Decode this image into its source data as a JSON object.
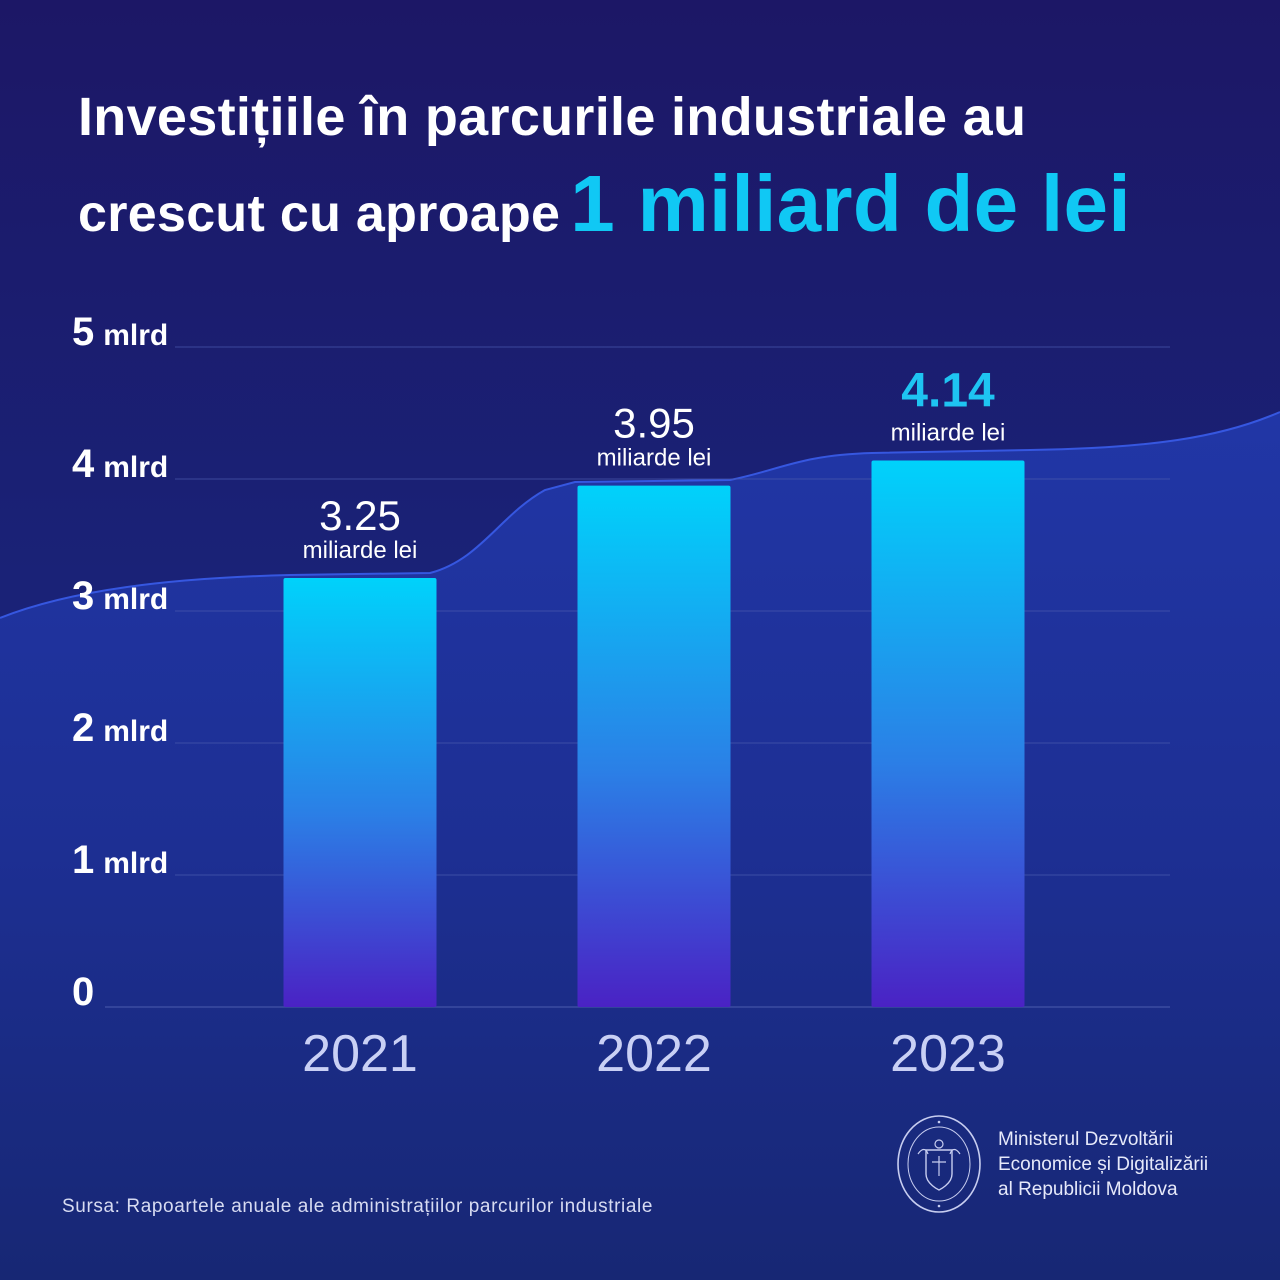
{
  "title": {
    "line1": "Investițiile în parcurile industriale au",
    "line2_plain": "crescut cu aproape",
    "line2_accent": "1 miliard de lei"
  },
  "chart_data": {
    "type": "bar",
    "categories": [
      "2021",
      "2022",
      "2023"
    ],
    "values": [
      3.25,
      3.95,
      4.14
    ],
    "value_labels": [
      "3.25",
      "3.95",
      "4.14"
    ],
    "value_unit": "miliarde lei",
    "ylim": [
      0,
      5
    ],
    "y_ticks": [
      {
        "value": 0,
        "num": "0",
        "unit": ""
      },
      {
        "value": 1,
        "num": "1",
        "unit": "mlrd"
      },
      {
        "value": 2,
        "num": "2",
        "unit": "mlrd"
      },
      {
        "value": 3,
        "num": "3",
        "unit": "mlrd"
      },
      {
        "value": 4,
        "num": "4",
        "unit": "mlrd"
      },
      {
        "value": 5,
        "num": "5",
        "unit": "mlrd"
      }
    ],
    "grid": true,
    "highlight_index": 2,
    "colors": {
      "bar_top": "#00d2fb",
      "bar_bottom": "#4a22c4",
      "highlight_text": "#1ec4f2"
    }
  },
  "footer": {
    "source": "Sursa: Rapoartele anuale ale administrațiilor parcurilor industriale",
    "ministry": [
      "Ministerul Dezvoltării",
      "Economice și Digitalizării",
      "al Republicii Moldova"
    ],
    "seal_icon": "coat-of-arms-seal-icon"
  }
}
